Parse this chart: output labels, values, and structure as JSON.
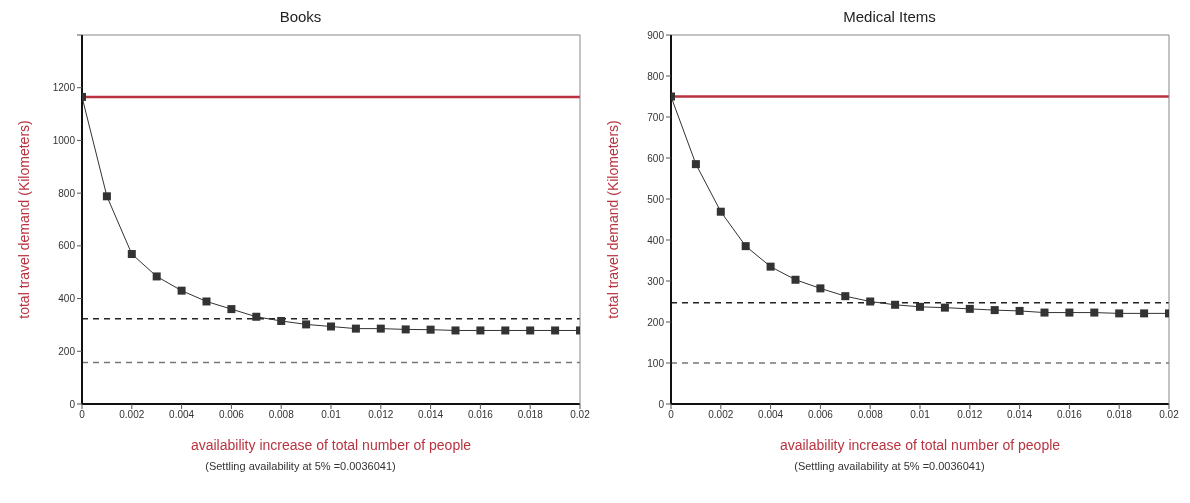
{
  "chart_data": [
    {
      "type": "line",
      "title": "Books",
      "xlabel": "availability increase of total number of people",
      "ylabel": "total travel demand (Kilometers)",
      "annotations": [
        "(Settling availability at 5% =0.0036041)"
      ],
      "x": [
        0,
        0.001,
        0.002,
        0.003,
        0.004,
        0.005,
        0.006,
        0.007,
        0.008,
        0.009,
        0.01,
        0.011,
        0.012,
        0.013,
        0.014,
        0.015,
        0.016,
        0.017,
        0.018,
        0.019,
        0.02
      ],
      "series": [
        {
          "color": "#333333",
          "values": [
            1165,
            788,
            569,
            484,
            430,
            389,
            360,
            331,
            315,
            302,
            294,
            286,
            286,
            283,
            282,
            279,
            279,
            279,
            279,
            279,
            279
          ]
        }
      ],
      "xlim": [
        0,
        0.02
      ],
      "xticks": [
        0,
        0.002,
        0.004,
        0.006,
        0.008,
        0.01,
        0.012,
        0.014,
        0.016,
        0.018,
        0.02
      ],
      "ylim": [
        0,
        1400
      ],
      "yticks": [
        0,
        200,
        400,
        600,
        800,
        1000,
        1200,
        {
          "value": 1400,
          "label": null
        }
      ],
      "ref_lines": [
        {
          "axis": "y",
          "value": 1165,
          "label": null,
          "color": "#b8333f",
          "line_style": "solid"
        },
        {
          "axis": "y",
          "value": 323,
          "label": null,
          "color": "#222222",
          "line_style": "dashed"
        },
        {
          "axis": "y",
          "value": 157,
          "label": null,
          "color": "#777777",
          "line_style": "dashed"
        }
      ],
      "marker": "square",
      "line_style": "solid",
      "grid": false,
      "legend": false
    },
    {
      "type": "line",
      "title": "Medical Items",
      "xlabel": "availability increase of total number of people",
      "ylabel": "total travel demand (Kilometers)",
      "annotations": [
        "(Settling availability at 5% =0.0036041)"
      ],
      "x": [
        0,
        0.001,
        0.002,
        0.003,
        0.004,
        0.005,
        0.006,
        0.007,
        0.008,
        0.009,
        0.01,
        0.011,
        0.012,
        0.013,
        0.014,
        0.015,
        0.016,
        0.017,
        0.018,
        0.019,
        0.02
      ],
      "series": [
        {
          "color": "#333333",
          "values": [
            750,
            585,
            469,
            385,
            335,
            303,
            282,
            263,
            250,
            242,
            237,
            235,
            232,
            229,
            227,
            223,
            223,
            223,
            221,
            221,
            221
          ]
        }
      ],
      "xlim": [
        0,
        0.02
      ],
      "xticks": [
        0,
        0.002,
        0.004,
        0.006,
        0.008,
        0.01,
        0.012,
        0.014,
        0.016,
        0.018,
        0.02
      ],
      "ylim": [
        0,
        900
      ],
      "yticks": [
        0,
        100,
        200,
        300,
        400,
        500,
        600,
        700,
        800,
        900
      ],
      "ref_lines": [
        {
          "axis": "y",
          "value": 750,
          "label": null,
          "color": "#b8333f",
          "line_style": "solid"
        },
        {
          "axis": "y",
          "value": 247,
          "label": null,
          "color": "#222222",
          "line_style": "dashed"
        },
        {
          "axis": "y",
          "value": 100,
          "label": null,
          "color": "#777777",
          "line_style": "dashed"
        }
      ],
      "marker": "square",
      "line_style": "solid",
      "grid": false,
      "legend": false
    }
  ]
}
